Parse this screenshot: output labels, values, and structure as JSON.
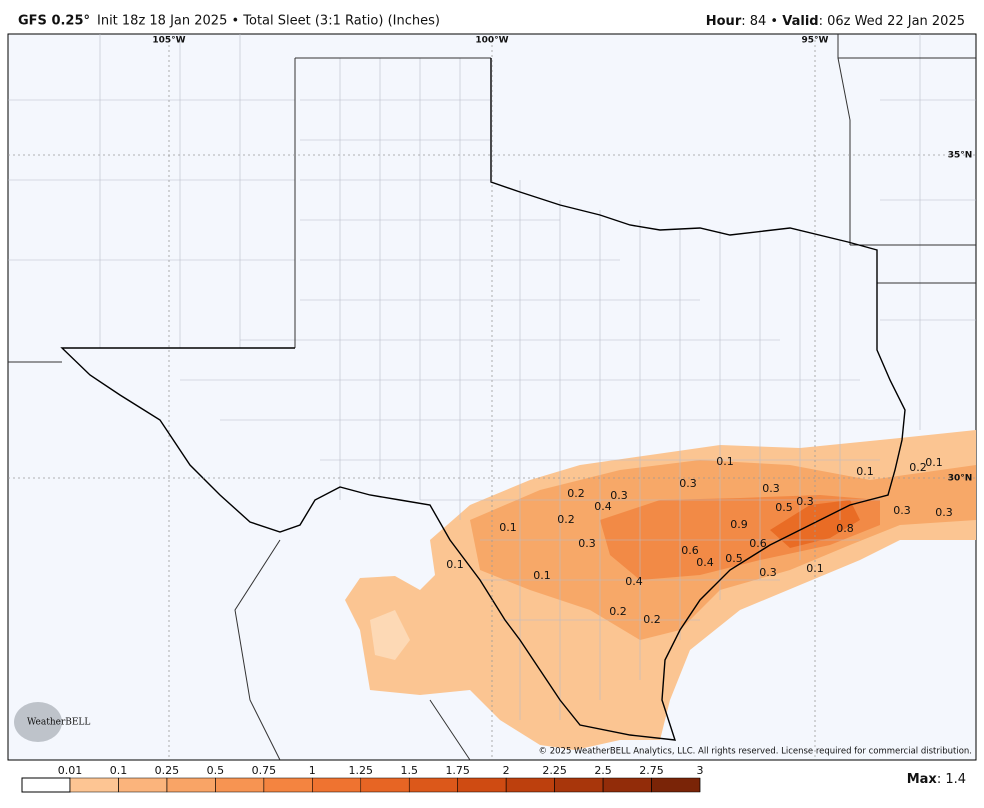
{
  "header": {
    "model": "GFS 0.25°",
    "description": "Init 18z 18 Jan 2025 • Total Sleet (3:1 Ratio) (Inches)",
    "hour_label": "Hour",
    "hour_text": ": 84 • ",
    "valid_label": "Valid",
    "valid_text": ": 06z Wed 22 Jan 2025"
  },
  "map": {
    "longitude_labels": [
      "105°W",
      "100°W",
      "95°W"
    ],
    "latitude_labels": [
      "35°N",
      "30°N"
    ],
    "contour_labels": [
      "0.1",
      "0.1",
      "0.2",
      "0.1",
      "0.3",
      "0.3",
      "0.2",
      "0.3",
      "0.4",
      "0.3",
      "0.5",
      "0.2",
      "0.1",
      "0.9",
      "0.8",
      "0.3",
      "0.3",
      "0.3",
      "0.6",
      "0.6",
      "0.4",
      "0.5",
      "0.1",
      "0.4",
      "0.3",
      "0.1",
      "0.1",
      "0.2",
      "0.2"
    ],
    "copyright": "© 2025 WeatherBELL Analytics, LLC. All rights reserved. License required for commercial distribution.",
    "logo": "WeatherBELL"
  },
  "legend": {
    "ticks": [
      0.01,
      0.1,
      0.25,
      0.5,
      0.75,
      1,
      1.25,
      1.5,
      1.75,
      2,
      2.25,
      2.5,
      2.75,
      3
    ],
    "colors": [
      "#fdc593",
      "#fbb47c",
      "#f9a466",
      "#f79452",
      "#f48440",
      "#ef7330",
      "#e76524",
      "#dc581a",
      "#cf4b12",
      "#bd400d",
      "#a8360b",
      "#922c09",
      "#7a2407"
    ],
    "max_label": "Max",
    "max_text": ": 1.4"
  }
}
